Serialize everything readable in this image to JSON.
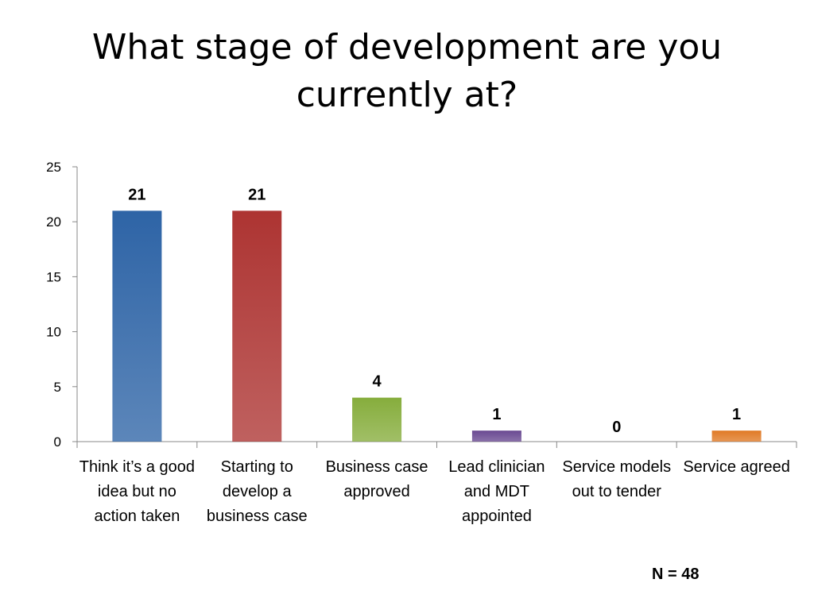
{
  "chart_data": {
    "type": "bar",
    "title": "What stage of development are you currently at?",
    "categories": [
      "Think it’s a good idea but no action taken",
      "Starting to develop a business case",
      "Business case approved",
      "Lead clinician and MDT appointed",
      "Service models out to tender",
      "Service agreed"
    ],
    "values": [
      21,
      21,
      4,
      1,
      0,
      1
    ],
    "ylim": [
      0,
      25
    ],
    "yticks": [
      "0",
      "5",
      "10",
      "15",
      "20",
      "25"
    ],
    "data_labels": [
      "21",
      "21",
      "4",
      "1",
      "0",
      "1"
    ],
    "bar_colors": [
      "#2e64a6",
      "#ad3432",
      "#86ad3c",
      "#6a4a92",
      "#3aa0bf",
      "#e07a26"
    ],
    "grid": false,
    "legend": "none",
    "xlabel": "",
    "ylabel": ""
  },
  "note": "N = 48"
}
